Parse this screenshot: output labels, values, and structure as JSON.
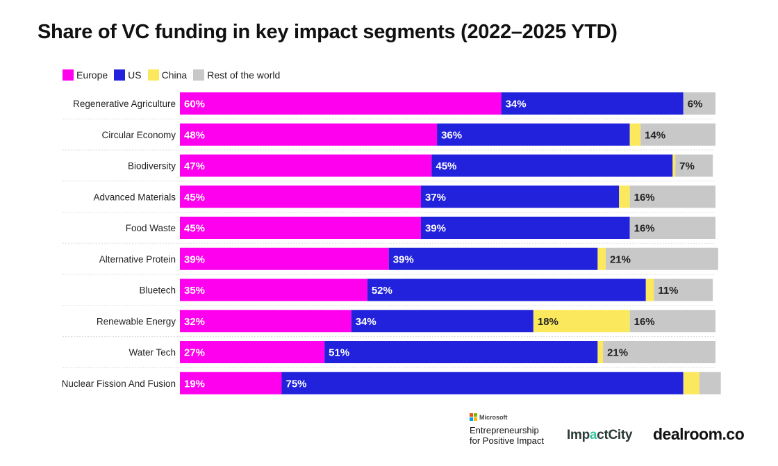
{
  "header": {
    "title": "Share of VC funding in key impact segments (2022–2025 YTD)"
  },
  "legend": [
    {
      "label": "Europe",
      "color": "#ff00ee"
    },
    {
      "label": "US",
      "color": "#2222dd"
    },
    {
      "label": "China",
      "color": "#fce85c"
    },
    {
      "label": "Rest of the world",
      "color": "#c8c8c8"
    }
  ],
  "chart_data": {
    "type": "bar",
    "orientation": "horizontal",
    "stacked": true,
    "normalized": true,
    "title": "Share of VC funding in key impact segments (2022–2025 YTD)",
    "categories": [
      "Regenerative Agriculture",
      "Circular Economy",
      "Biodiversity",
      "Advanced Materials",
      "Food Waste",
      "Alternative Protein",
      "Bluetech",
      "Renewable Energy",
      "Water Tech",
      "Nuclear Fission And Fusion"
    ],
    "series": [
      {
        "name": "Europe",
        "color": "#ff00ee",
        "values": [
          60,
          48,
          47,
          45,
          45,
          39,
          35,
          32,
          27,
          19
        ],
        "labels": [
          "60%",
          "48%",
          "47%",
          "45%",
          "45%",
          "39%",
          "35%",
          "32%",
          "27%",
          "19%"
        ]
      },
      {
        "name": "US",
        "color": "#2222dd",
        "values": [
          34,
          36,
          45,
          37,
          39,
          39,
          52,
          34,
          51,
          75
        ],
        "labels": [
          "34%",
          "36%",
          "45%",
          "37%",
          "39%",
          "39%",
          "52%",
          "34%",
          "51%",
          "75%"
        ]
      },
      {
        "name": "China",
        "color": "#fce85c",
        "values": [
          0,
          2,
          0.5,
          2,
          0,
          1.5,
          1.5,
          18,
          1,
          3
        ],
        "labels": [
          "",
          "",
          "",
          "",
          "",
          "",
          "",
          "18%",
          "",
          ""
        ]
      },
      {
        "name": "Rest of the world",
        "color": "#c8c8c8",
        "values": [
          6,
          14,
          7,
          16,
          16,
          21,
          11,
          16,
          21,
          4
        ],
        "labels": [
          "6%",
          "14%",
          "7%",
          "16%",
          "16%",
          "21%",
          "11%",
          "16%",
          "21%",
          ""
        ]
      }
    ],
    "xlim": [
      0,
      100
    ],
    "legend_position": "top-left"
  },
  "footer": {
    "microsoft": "Microsoft",
    "program_line1": "Entrepreneurship",
    "program_line2": "for Positive Impact",
    "impactcity_a": "Imp",
    "impactcity_b": "a",
    "impactcity_c": "ctCity",
    "dealroom": "dealroom.co"
  }
}
